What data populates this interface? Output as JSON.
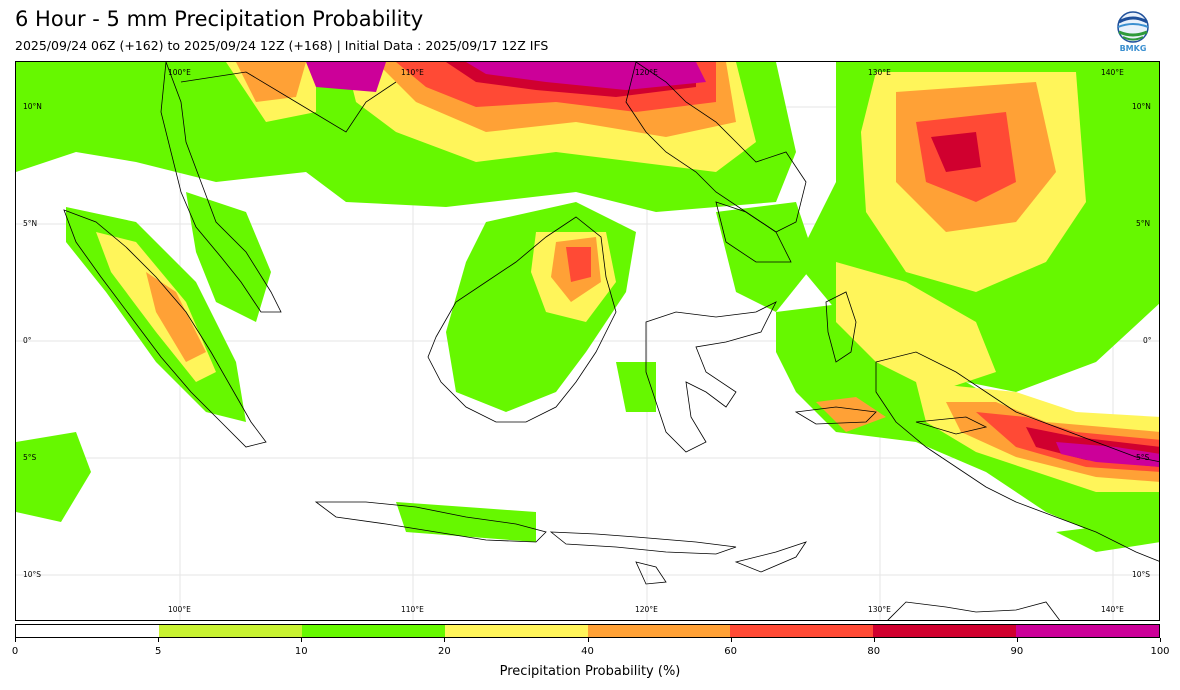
{
  "header": {
    "title": "6 Hour - 5 mm Precipitation Probability",
    "subtitle": "2025/09/24 06Z (+162) to 2025/09/24 12Z (+168) | Initial Data : 2025/09/17 12Z IFS",
    "logo_text": "BMKG"
  },
  "map": {
    "lon_labels": [
      "100°E",
      "110°E",
      "120°E",
      "130°E",
      "140°E"
    ],
    "lat_labels_left": [
      "10°N",
      "5°N",
      "0°",
      "5°S",
      "10°S"
    ],
    "lat_labels_right": [
      "10°N",
      "5°N",
      "0°",
      "5°S",
      "10°S"
    ],
    "colors": {
      "p5": "#c8f231",
      "p10": "#66f800",
      "p20": "#fff55a",
      "p40": "#ffa136",
      "p60": "#ff4a35",
      "p80": "#d0002f",
      "p90": "#cc0099"
    }
  },
  "colorbar": {
    "ticks": [
      "0",
      "5",
      "10",
      "20",
      "40",
      "60",
      "80",
      "90",
      "100"
    ],
    "colors": [
      "#ffffff",
      "#c8f231",
      "#66f800",
      "#fff55a",
      "#ffa136",
      "#ff4a35",
      "#d0002f",
      "#cc0099"
    ],
    "label": "Precipitation Probability (%)"
  }
}
